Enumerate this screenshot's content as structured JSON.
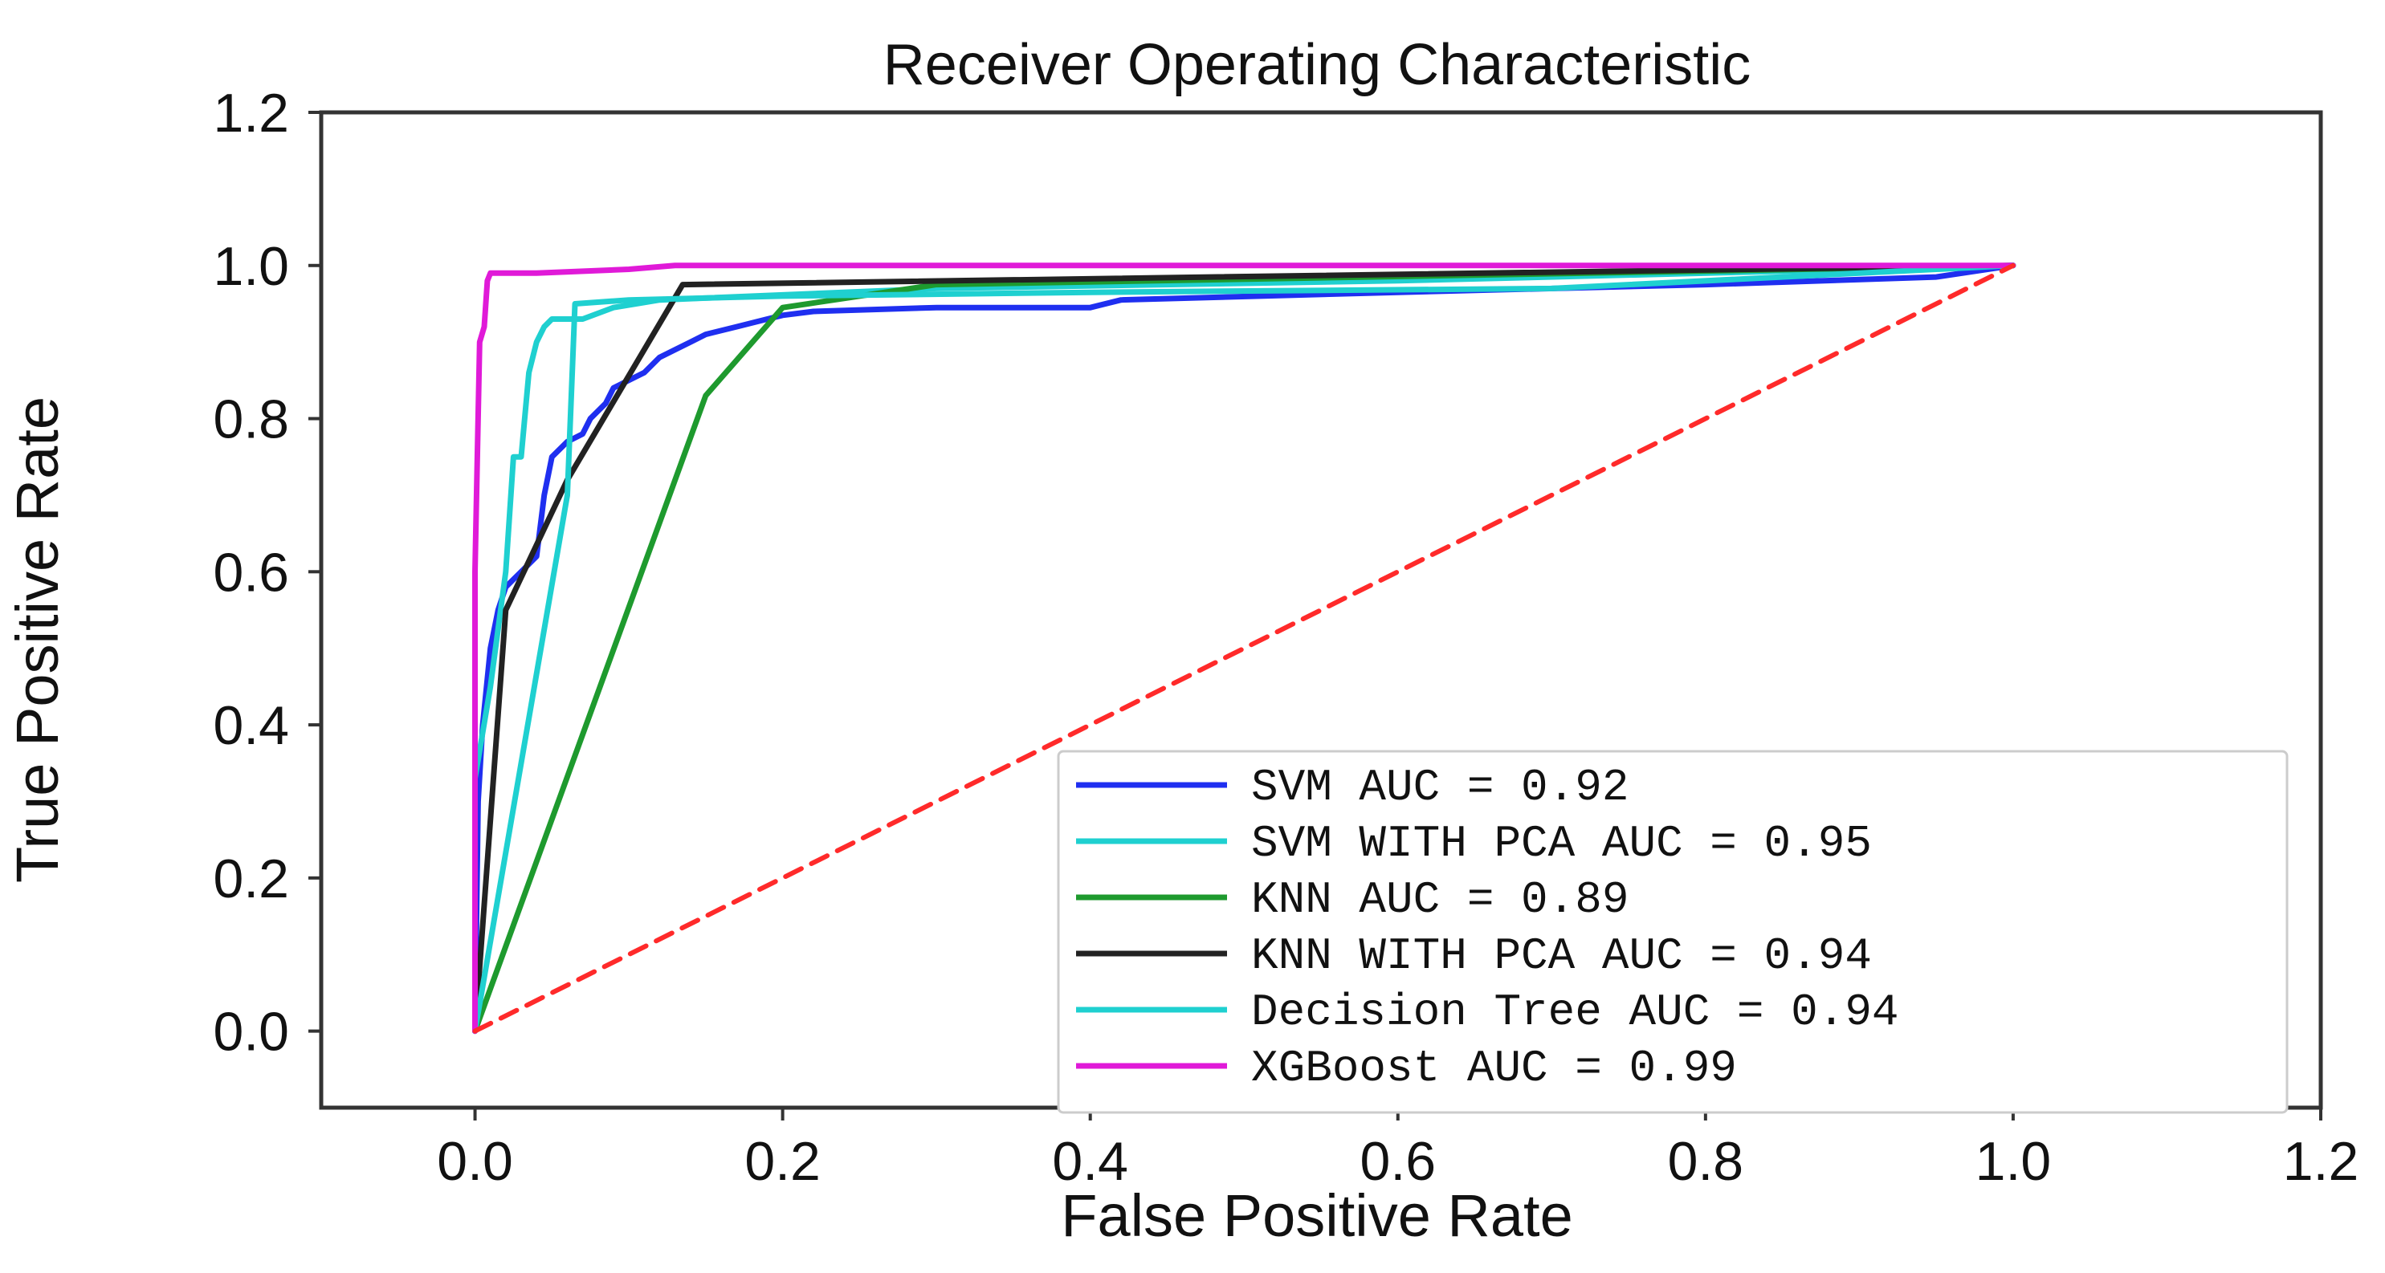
{
  "chart_data": {
    "type": "line",
    "title": "Receiver Operating Characteristic",
    "xlabel": "False Positive Rate",
    "ylabel": "True Positive Rate",
    "xlim": [
      -0.1,
      1.2
    ],
    "ylim": [
      -0.1,
      1.2
    ],
    "xticks": [
      0.0,
      0.2,
      0.4,
      0.6,
      0.8,
      1.0,
      1.2
    ],
    "yticks": [
      0.0,
      0.2,
      0.4,
      0.6,
      0.8,
      1.0,
      1.2
    ],
    "xtick_labels": [
      "0.0",
      "0.2",
      "0.4",
      "0.6",
      "0.8",
      "1.0",
      "1.2"
    ],
    "ytick_labels": [
      "0.0",
      "0.2",
      "0.4",
      "0.6",
      "0.8",
      "1.0",
      "1.2"
    ],
    "grid": false,
    "legend_position": "lower-right",
    "series": [
      {
        "name": "SVM AUC = 0.92",
        "color": "#1f2ff0",
        "x": [
          0.0,
          0.002,
          0.005,
          0.01,
          0.015,
          0.02,
          0.03,
          0.04,
          0.045,
          0.05,
          0.06,
          0.07,
          0.075,
          0.085,
          0.09,
          0.1,
          0.11,
          0.12,
          0.13,
          0.14,
          0.15,
          0.17,
          0.19,
          0.2,
          0.22,
          0.3,
          0.4,
          0.42,
          0.6,
          0.8,
          0.95,
          1.0
        ],
        "y": [
          0.0,
          0.3,
          0.4,
          0.5,
          0.55,
          0.58,
          0.6,
          0.62,
          0.7,
          0.75,
          0.77,
          0.78,
          0.8,
          0.82,
          0.84,
          0.85,
          0.86,
          0.88,
          0.89,
          0.9,
          0.91,
          0.92,
          0.93,
          0.935,
          0.94,
          0.945,
          0.945,
          0.955,
          0.965,
          0.975,
          0.985,
          1.0
        ]
      },
      {
        "name": "SVM WITH PCA AUC = 0.95",
        "color": "#1fd0d0",
        "x": [
          0.0,
          0.0,
          0.01,
          0.02,
          0.025,
          0.03,
          0.035,
          0.04,
          0.045,
          0.05,
          0.07,
          0.09,
          0.12,
          0.3,
          0.6,
          1.0
        ],
        "y": [
          0.0,
          0.33,
          0.45,
          0.6,
          0.75,
          0.75,
          0.86,
          0.9,
          0.92,
          0.93,
          0.93,
          0.945,
          0.955,
          0.97,
          0.98,
          1.0
        ]
      },
      {
        "name": "KNN AUC = 0.89",
        "color": "#1e9a2e",
        "x": [
          0.0,
          0.15,
          0.2,
          0.3,
          1.0
        ],
        "y": [
          0.0,
          0.83,
          0.945,
          0.975,
          1.0
        ]
      },
      {
        "name": "KNN WITH PCA AUC = 0.94",
        "color": "#222222",
        "x": [
          0.0,
          0.02,
          0.06,
          0.135,
          1.0
        ],
        "y": [
          0.0,
          0.55,
          0.72,
          0.975,
          1.0
        ]
      },
      {
        "name": "Decision Tree AUC = 0.94",
        "color": "#1fd0d0",
        "x": [
          0.0,
          0.06,
          0.065,
          0.1,
          0.2,
          0.4,
          0.7,
          1.0
        ],
        "y": [
          0.0,
          0.7,
          0.95,
          0.955,
          0.96,
          0.965,
          0.97,
          1.0
        ]
      },
      {
        "name": "XGBoost AUC = 0.99",
        "color": "#e01ad8",
        "x": [
          0.0,
          0.0,
          0.003,
          0.006,
          0.008,
          0.01,
          0.04,
          0.1,
          0.13,
          1.0
        ],
        "y": [
          0.0,
          0.6,
          0.9,
          0.92,
          0.98,
          0.99,
          0.99,
          0.995,
          1.0,
          1.0
        ]
      },
      {
        "name": "chance",
        "color": "#ff2a2a",
        "dashed": true,
        "in_legend": false,
        "x": [
          0.0,
          1.0
        ],
        "y": [
          0.0,
          1.0
        ]
      }
    ]
  }
}
